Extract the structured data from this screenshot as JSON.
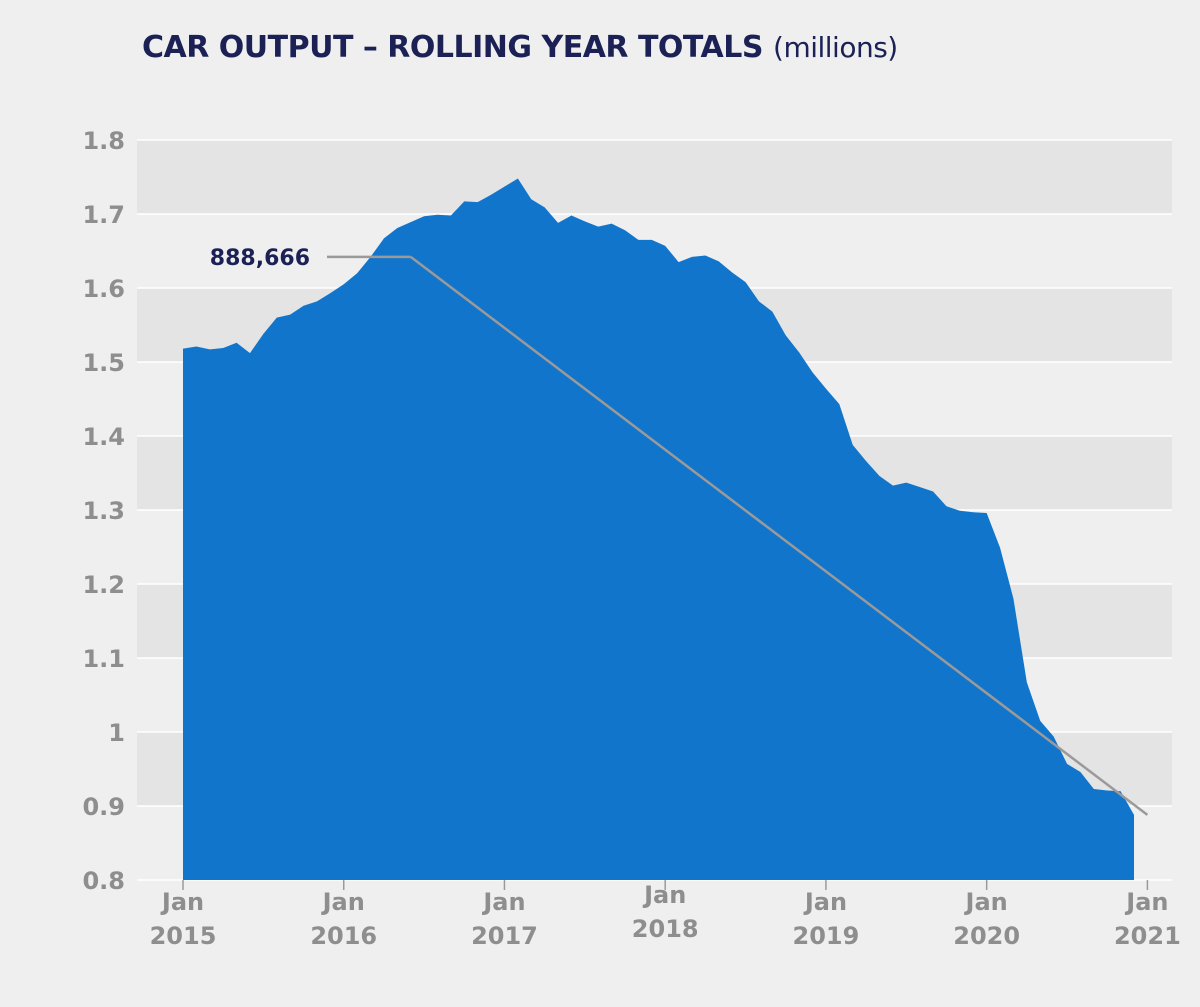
{
  "chart_data": {
    "type": "area",
    "title": "CAR OUTPUT – ROLLING YEAR TOTALS",
    "unit_label": "(millions)",
    "ylim": [
      0.8,
      1.8
    ],
    "yticks": [
      "0.8",
      "0.9",
      "1",
      "1.1",
      "1.2",
      "1.3",
      "1.4",
      "1.5",
      "1.6",
      "1.7",
      "1.8"
    ],
    "xticks": [
      {
        "month": "Jan",
        "year": "2015",
        "index": 0
      },
      {
        "month": "Jan",
        "year": "2016",
        "index": 12
      },
      {
        "month": "Jan",
        "year": "2017",
        "index": 24
      },
      {
        "month": "Jan",
        "year": "2018",
        "index": 36
      },
      {
        "month": "Jan",
        "year": "2019",
        "index": 48
      },
      {
        "month": "Jan",
        "year": "2020",
        "index": 60
      },
      {
        "month": "Jan",
        "year": "2021",
        "index": 72
      }
    ],
    "series": [
      {
        "name": "Car output rolling year total",
        "color": "#1175cb",
        "values": [
          1.518,
          1.521,
          1.517,
          1.519,
          1.526,
          1.512,
          1.538,
          1.56,
          1.564,
          1.576,
          1.582,
          1.593,
          1.605,
          1.62,
          1.642,
          1.667,
          1.681,
          1.689,
          1.697,
          1.699,
          1.698,
          1.717,
          1.716,
          1.726,
          1.737,
          1.748,
          1.72,
          1.709,
          1.688,
          1.698,
          1.69,
          1.683,
          1.687,
          1.678,
          1.665,
          1.665,
          1.657,
          1.635,
          1.642,
          1.644,
          1.636,
          1.621,
          1.608,
          1.582,
          1.568,
          1.536,
          1.513,
          1.486,
          1.464,
          1.443,
          1.388,
          1.366,
          1.346,
          1.333,
          1.337,
          1.331,
          1.325,
          1.305,
          1.299,
          1.297,
          1.296,
          1.249,
          1.18,
          1.067,
          1.015,
          0.994,
          0.957,
          0.946,
          0.923,
          0.921,
          0.92,
          0.888
        ]
      }
    ],
    "trend_line": {
      "start_index": 17,
      "start_value": 1.642,
      "end_index": 72,
      "end_value": 0.888,
      "color": "#9a9a9a"
    },
    "annotations": [
      {
        "text": "888,666",
        "anchor_index": 17,
        "anchor_value": 1.642
      }
    ],
    "grid": true
  }
}
